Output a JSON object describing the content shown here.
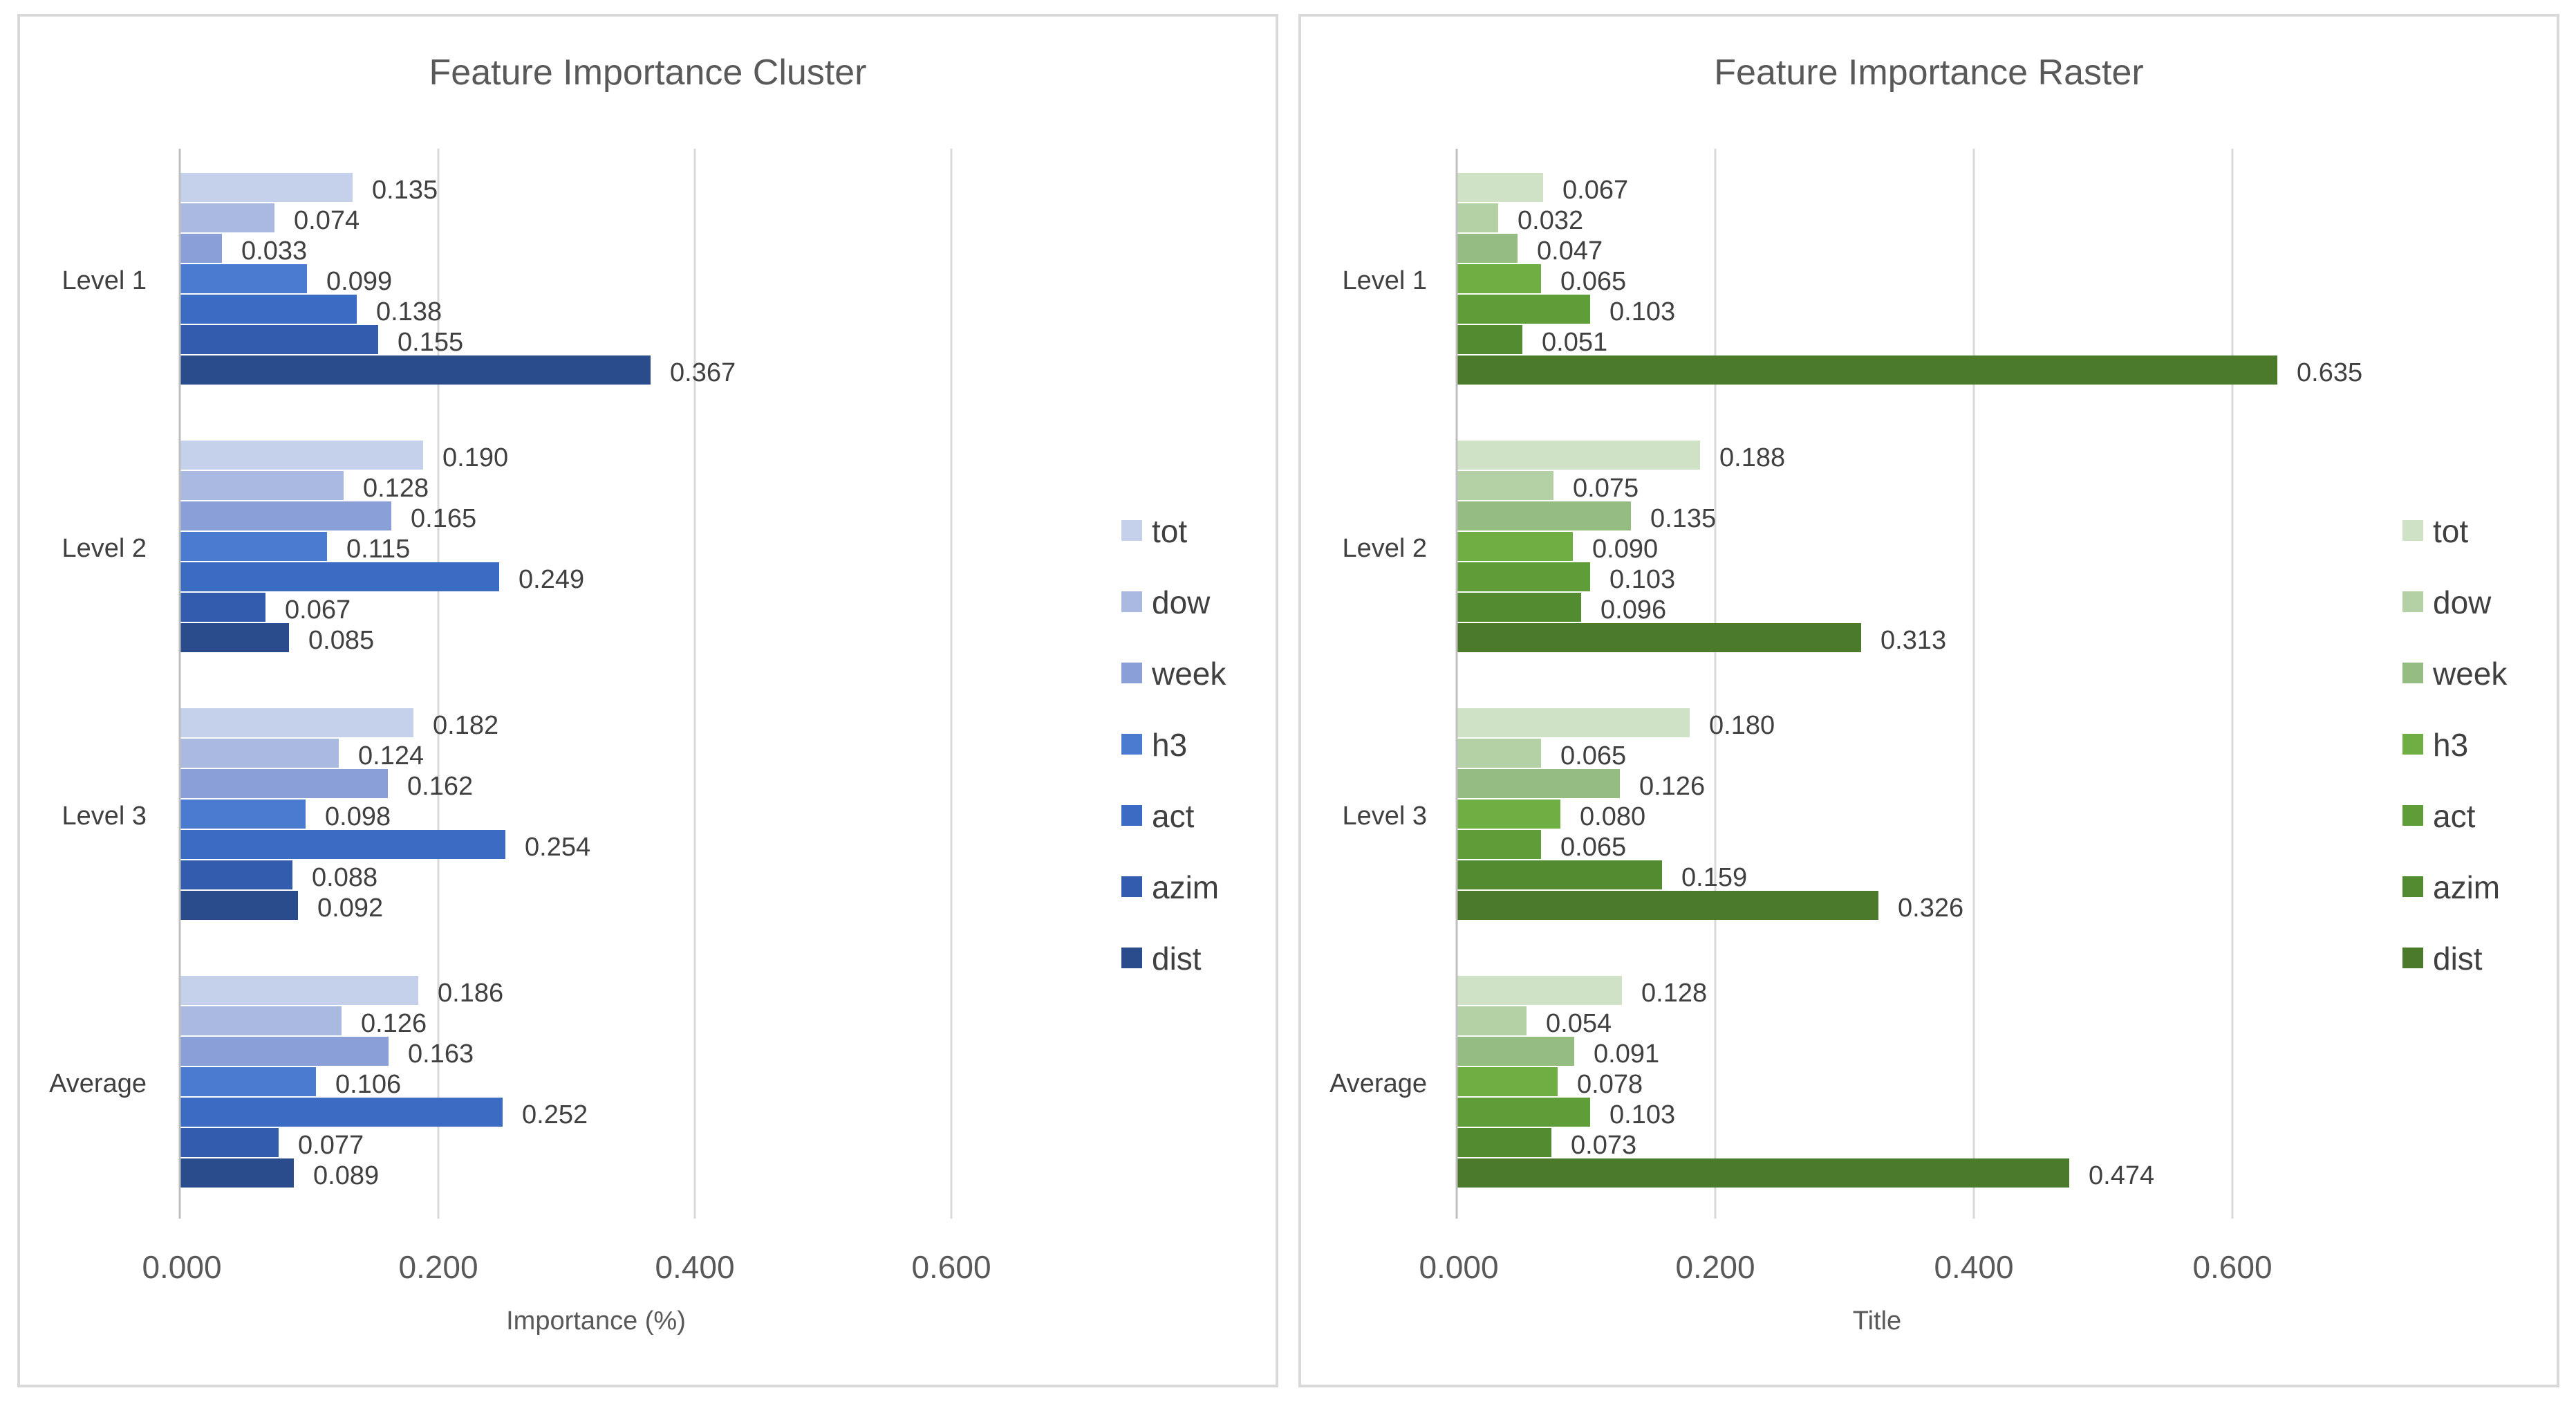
{
  "chart_data": [
    {
      "type": "bar",
      "orientation": "horizontal",
      "title": "Feature Importance Cluster",
      "xlabel": "Importance (%)",
      "ylabel": "",
      "xlim": [
        0,
        0.75
      ],
      "x_ticks": [
        "0.000",
        "0.200",
        "0.400",
        "0.600"
      ],
      "x_tick_values": [
        0,
        0.2,
        0.4,
        0.6
      ],
      "categories": [
        "Level 1",
        "Level 2",
        "Level 3",
        "Average"
      ],
      "grid": true,
      "legend": "right",
      "series": [
        {
          "name": "tot",
          "color": "#C5D0EA",
          "values": [
            0.135,
            0.19,
            0.182,
            0.186
          ],
          "labels": [
            "0.135",
            "0.190",
            "0.182",
            "0.186"
          ]
        },
        {
          "name": "dow",
          "color": "#AAB9E0",
          "values": [
            0.074,
            0.128,
            0.124,
            0.126
          ],
          "labels": [
            "0.074",
            "0.128",
            "0.124",
            "0.126"
          ]
        },
        {
          "name": "week",
          "color": "#8A9FD8",
          "values": [
            0.033,
            0.165,
            0.162,
            0.163
          ],
          "labels": [
            "0.033",
            "0.165",
            "0.162",
            "0.163"
          ]
        },
        {
          "name": "h3",
          "color": "#4B7AD1",
          "values": [
            0.099,
            0.115,
            0.098,
            0.106
          ],
          "labels": [
            "0.099",
            "0.115",
            "0.098",
            "0.106"
          ]
        },
        {
          "name": "act",
          "color": "#3C6BC3",
          "values": [
            0.138,
            0.249,
            0.254,
            0.252
          ],
          "labels": [
            "0.138",
            "0.249",
            "0.254",
            "0.252"
          ]
        },
        {
          "name": "azim",
          "color": "#345CAE",
          "values": [
            0.155,
            0.067,
            0.088,
            0.077
          ],
          "labels": [
            "0.155",
            "0.067",
            "0.088",
            "0.077"
          ]
        },
        {
          "name": "dist",
          "color": "#2A4B8C",
          "values": [
            0.367,
            0.085,
            0.092,
            0.089
          ],
          "labels": [
            "0.367",
            "0.085",
            "0.092",
            "0.089"
          ]
        }
      ]
    },
    {
      "type": "bar",
      "orientation": "horizontal",
      "title": "Feature Importance Raster",
      "xlabel": "Title",
      "ylabel": "",
      "xlim": [
        0,
        0.75
      ],
      "x_ticks": [
        "0.000",
        "0.200",
        "0.400",
        "0.600"
      ],
      "x_tick_values": [
        0,
        0.2,
        0.4,
        0.6
      ],
      "categories": [
        "Level 1",
        "Level 2",
        "Level 3",
        "Average"
      ],
      "grid": true,
      "legend": "right",
      "series": [
        {
          "name": "tot",
          "color": "#CFE2C6",
          "values": [
            0.067,
            0.188,
            0.18,
            0.128
          ],
          "labels": [
            "0.067",
            "0.188",
            "0.180",
            "0.128"
          ]
        },
        {
          "name": "dow",
          "color": "#B4D1A6",
          "values": [
            0.032,
            0.075,
            0.065,
            0.054
          ],
          "labels": [
            "0.032",
            "0.075",
            "0.065",
            "0.054"
          ]
        },
        {
          "name": "week",
          "color": "#95BD82",
          "values": [
            0.047,
            0.135,
            0.126,
            0.091
          ],
          "labels": [
            "0.047",
            "0.135",
            "0.126",
            "0.091"
          ]
        },
        {
          "name": "h3",
          "color": "#6FAE43",
          "values": [
            0.065,
            0.09,
            0.08,
            0.078
          ],
          "labels": [
            "0.065",
            "0.090",
            "0.080",
            "0.078"
          ]
        },
        {
          "name": "act",
          "color": "#5F9D38",
          "values": [
            0.103,
            0.103,
            0.065,
            0.103
          ],
          "labels": [
            "0.103",
            "0.103",
            "0.065",
            "0.103"
          ]
        },
        {
          "name": "azim",
          "color": "#538C30",
          "values": [
            0.051,
            0.096,
            0.159,
            0.073
          ],
          "labels": [
            "0.051",
            "0.096",
            "0.159",
            "0.073"
          ]
        },
        {
          "name": "dist",
          "color": "#4A7A2A",
          "values": [
            0.635,
            0.313,
            0.326,
            0.474
          ],
          "labels": [
            "0.635",
            "0.313",
            "0.326",
            "0.474"
          ]
        }
      ]
    }
  ]
}
